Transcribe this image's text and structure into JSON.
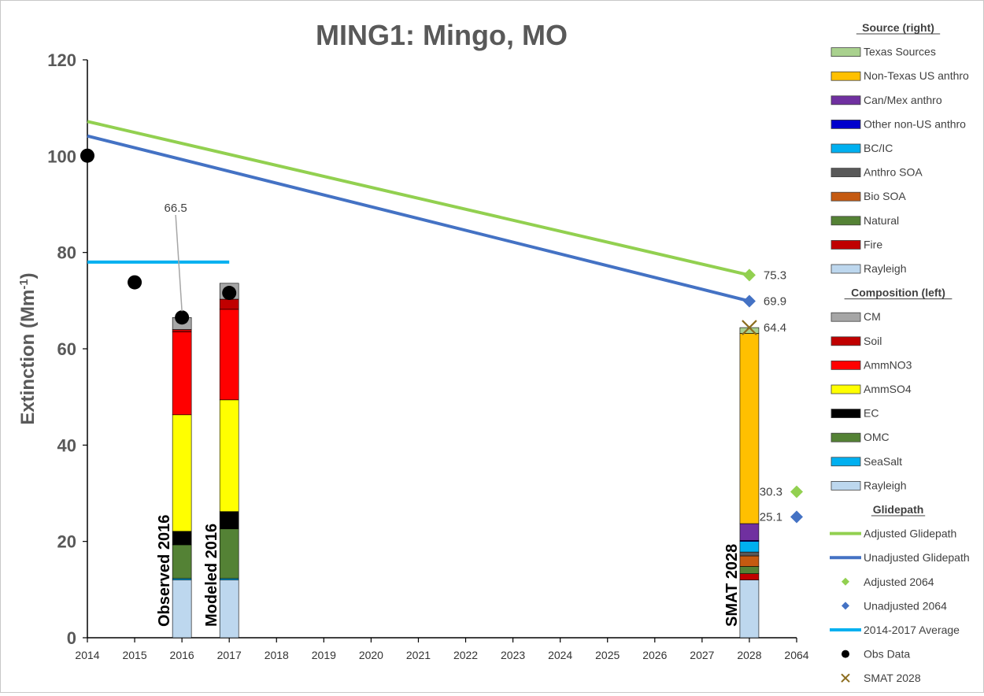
{
  "chart_data": {
    "type": "bar",
    "title": "MING1: Mingo, MO",
    "ylabel": "Extinction (Mm",
    "ylabel_sup": "-1",
    "ylabel_close": ")",
    "ylim": [
      0,
      120
    ],
    "yticks": [
      "0",
      "20",
      "40",
      "60",
      "80",
      "100",
      "120"
    ],
    "x_categories": [
      "2014",
      "2015",
      "2016",
      "2017",
      "2018",
      "2019",
      "2020",
      "2021",
      "2022",
      "2023",
      "2024",
      "2025",
      "2026",
      "2027",
      "2028",
      "2064"
    ],
    "grid": false,
    "legend_position": "right",
    "colors": {
      "texas": "#a9d18e",
      "non_texas_us": "#ffc000",
      "canmex": "#7030a0",
      "other_non_us": "#0000cc",
      "bcic": "#00b0f0",
      "anthro_soa": "#595959",
      "bio_soa": "#c55a11",
      "natural": "#548235",
      "fire": "#c00000",
      "rayleigh": "#bdd7ee",
      "cm": "#a6a6a6",
      "soil": "#c00000",
      "ammno3": "#ff0000",
      "ammso4": "#ffff00",
      "ec": "#000000",
      "omc": "#548235",
      "seasalt": "#00b0f0",
      "adjusted": "#92d050",
      "unadjusted": "#4472c4",
      "average": "#00b0f0",
      "obs": "#000000",
      "smat": "#8c6d1f"
    },
    "bar_labels": {
      "observed": "Observed 2016",
      "modeled": "Modeled 2016",
      "smat": "SMAT 2028"
    },
    "composition_bars": [
      {
        "name": "Observed 2016",
        "x": "2016",
        "segments": [
          {
            "key": "rayleigh",
            "value": 12.0
          },
          {
            "key": "seasalt",
            "value": 0.3
          },
          {
            "key": "omc",
            "value": 7.0
          },
          {
            "key": "ec",
            "value": 2.8
          },
          {
            "key": "ammso4",
            "value": 24.2
          },
          {
            "key": "ammno3",
            "value": 17.2
          },
          {
            "key": "soil",
            "value": 0.5
          },
          {
            "key": "cm",
            "value": 2.5
          }
        ]
      },
      {
        "name": "Modeled 2016",
        "x": "2017",
        "segments": [
          {
            "key": "rayleigh",
            "value": 12.0
          },
          {
            "key": "seasalt",
            "value": 0.3
          },
          {
            "key": "omc",
            "value": 10.3
          },
          {
            "key": "ec",
            "value": 3.6
          },
          {
            "key": "ammso4",
            "value": 23.2
          },
          {
            "key": "ammno3",
            "value": 18.8
          },
          {
            "key": "soil",
            "value": 2.1
          },
          {
            "key": "cm",
            "value": 3.3
          }
        ]
      }
    ],
    "source_bar": {
      "name": "SMAT 2028",
      "x": "2028",
      "segments": [
        {
          "key": "rayleigh",
          "value": 12.0
        },
        {
          "key": "fire",
          "value": 1.3
        },
        {
          "key": "natural",
          "value": 1.5
        },
        {
          "key": "bio_soa",
          "value": 2.2
        },
        {
          "key": "anthro_soa",
          "value": 0.8
        },
        {
          "key": "bcic",
          "value": 2.2
        },
        {
          "key": "other_non_us",
          "value": 0.2
        },
        {
          "key": "canmex",
          "value": 3.5
        },
        {
          "key": "non_texas_us",
          "value": 39.5
        },
        {
          "key": "texas",
          "value": 1.2
        }
      ]
    },
    "adjusted_glidepath": [
      {
        "x": "2014",
        "y": 107.2
      },
      {
        "x": "2028",
        "y": 75.3
      }
    ],
    "unadjusted_glidepath": [
      {
        "x": "2014",
        "y": 104.2
      },
      {
        "x": "2028",
        "y": 69.9
      }
    ],
    "average_2014_2017": {
      "x_start": "2014",
      "x_end": "2017",
      "y": 78.0
    },
    "obs_data": [
      {
        "x": "2014",
        "y": 100.1
      },
      {
        "x": "2015",
        "y": 73.8
      },
      {
        "x": "2016",
        "y": 66.5
      },
      {
        "x": "2017",
        "y": 71.6
      }
    ],
    "smat_2028": {
      "x": "2028",
      "y": 64.4
    },
    "adjusted_2064": {
      "x": "2064",
      "y": 30.3
    },
    "unadjusted_2064": {
      "x": "2064",
      "y": 25.1
    },
    "annotations": {
      "obs_2016": "66.5",
      "adjusted_2028": "75.3",
      "unadjusted_2028": "69.9",
      "smat_2028": "64.4",
      "adjusted_2064": "30.3",
      "unadjusted_2064": "25.1"
    },
    "legend": {
      "source_header": "Source (right)",
      "source_items": [
        {
          "key": "texas",
          "label": "Texas Sources"
        },
        {
          "key": "non_texas_us",
          "label": "Non-Texas US anthro"
        },
        {
          "key": "canmex",
          "label": "Can/Mex anthro"
        },
        {
          "key": "other_non_us",
          "label": "Other non-US anthro"
        },
        {
          "key": "bcic",
          "label": "BC/IC"
        },
        {
          "key": "anthro_soa",
          "label": "Anthro SOA"
        },
        {
          "key": "bio_soa",
          "label": "Bio SOA"
        },
        {
          "key": "natural",
          "label": "Natural"
        },
        {
          "key": "fire",
          "label": "Fire"
        },
        {
          "key": "rayleigh",
          "label": "Rayleigh"
        }
      ],
      "composition_header": "Composition (left)",
      "composition_items": [
        {
          "key": "cm",
          "label": "CM"
        },
        {
          "key": "soil",
          "label": "Soil"
        },
        {
          "key": "ammno3",
          "label": "AmmNO3"
        },
        {
          "key": "ammso4",
          "label": "AmmSO4"
        },
        {
          "key": "ec",
          "label": "EC"
        },
        {
          "key": "omc",
          "label": "OMC"
        },
        {
          "key": "seasalt",
          "label": "SeaSalt"
        },
        {
          "key": "rayleigh",
          "label": "Rayleigh"
        }
      ],
      "glidepath_header": "Glidepath",
      "glidepath_items": [
        {
          "key": "adjusted",
          "kind": "line",
          "label": "Adjusted Glidepath"
        },
        {
          "key": "unadjusted",
          "kind": "line",
          "label": "Unadjusted Glidepath"
        },
        {
          "key": "adjusted",
          "kind": "diamond",
          "label": "Adjusted 2064"
        },
        {
          "key": "unadjusted",
          "kind": "diamond",
          "label": "Unadjusted 2064"
        },
        {
          "key": "average",
          "kind": "line",
          "label": "2014-2017 Average"
        },
        {
          "key": "obs",
          "kind": "dot",
          "label": "Obs Data"
        },
        {
          "key": "smat",
          "kind": "cross",
          "label": "SMAT 2028"
        }
      ]
    }
  }
}
